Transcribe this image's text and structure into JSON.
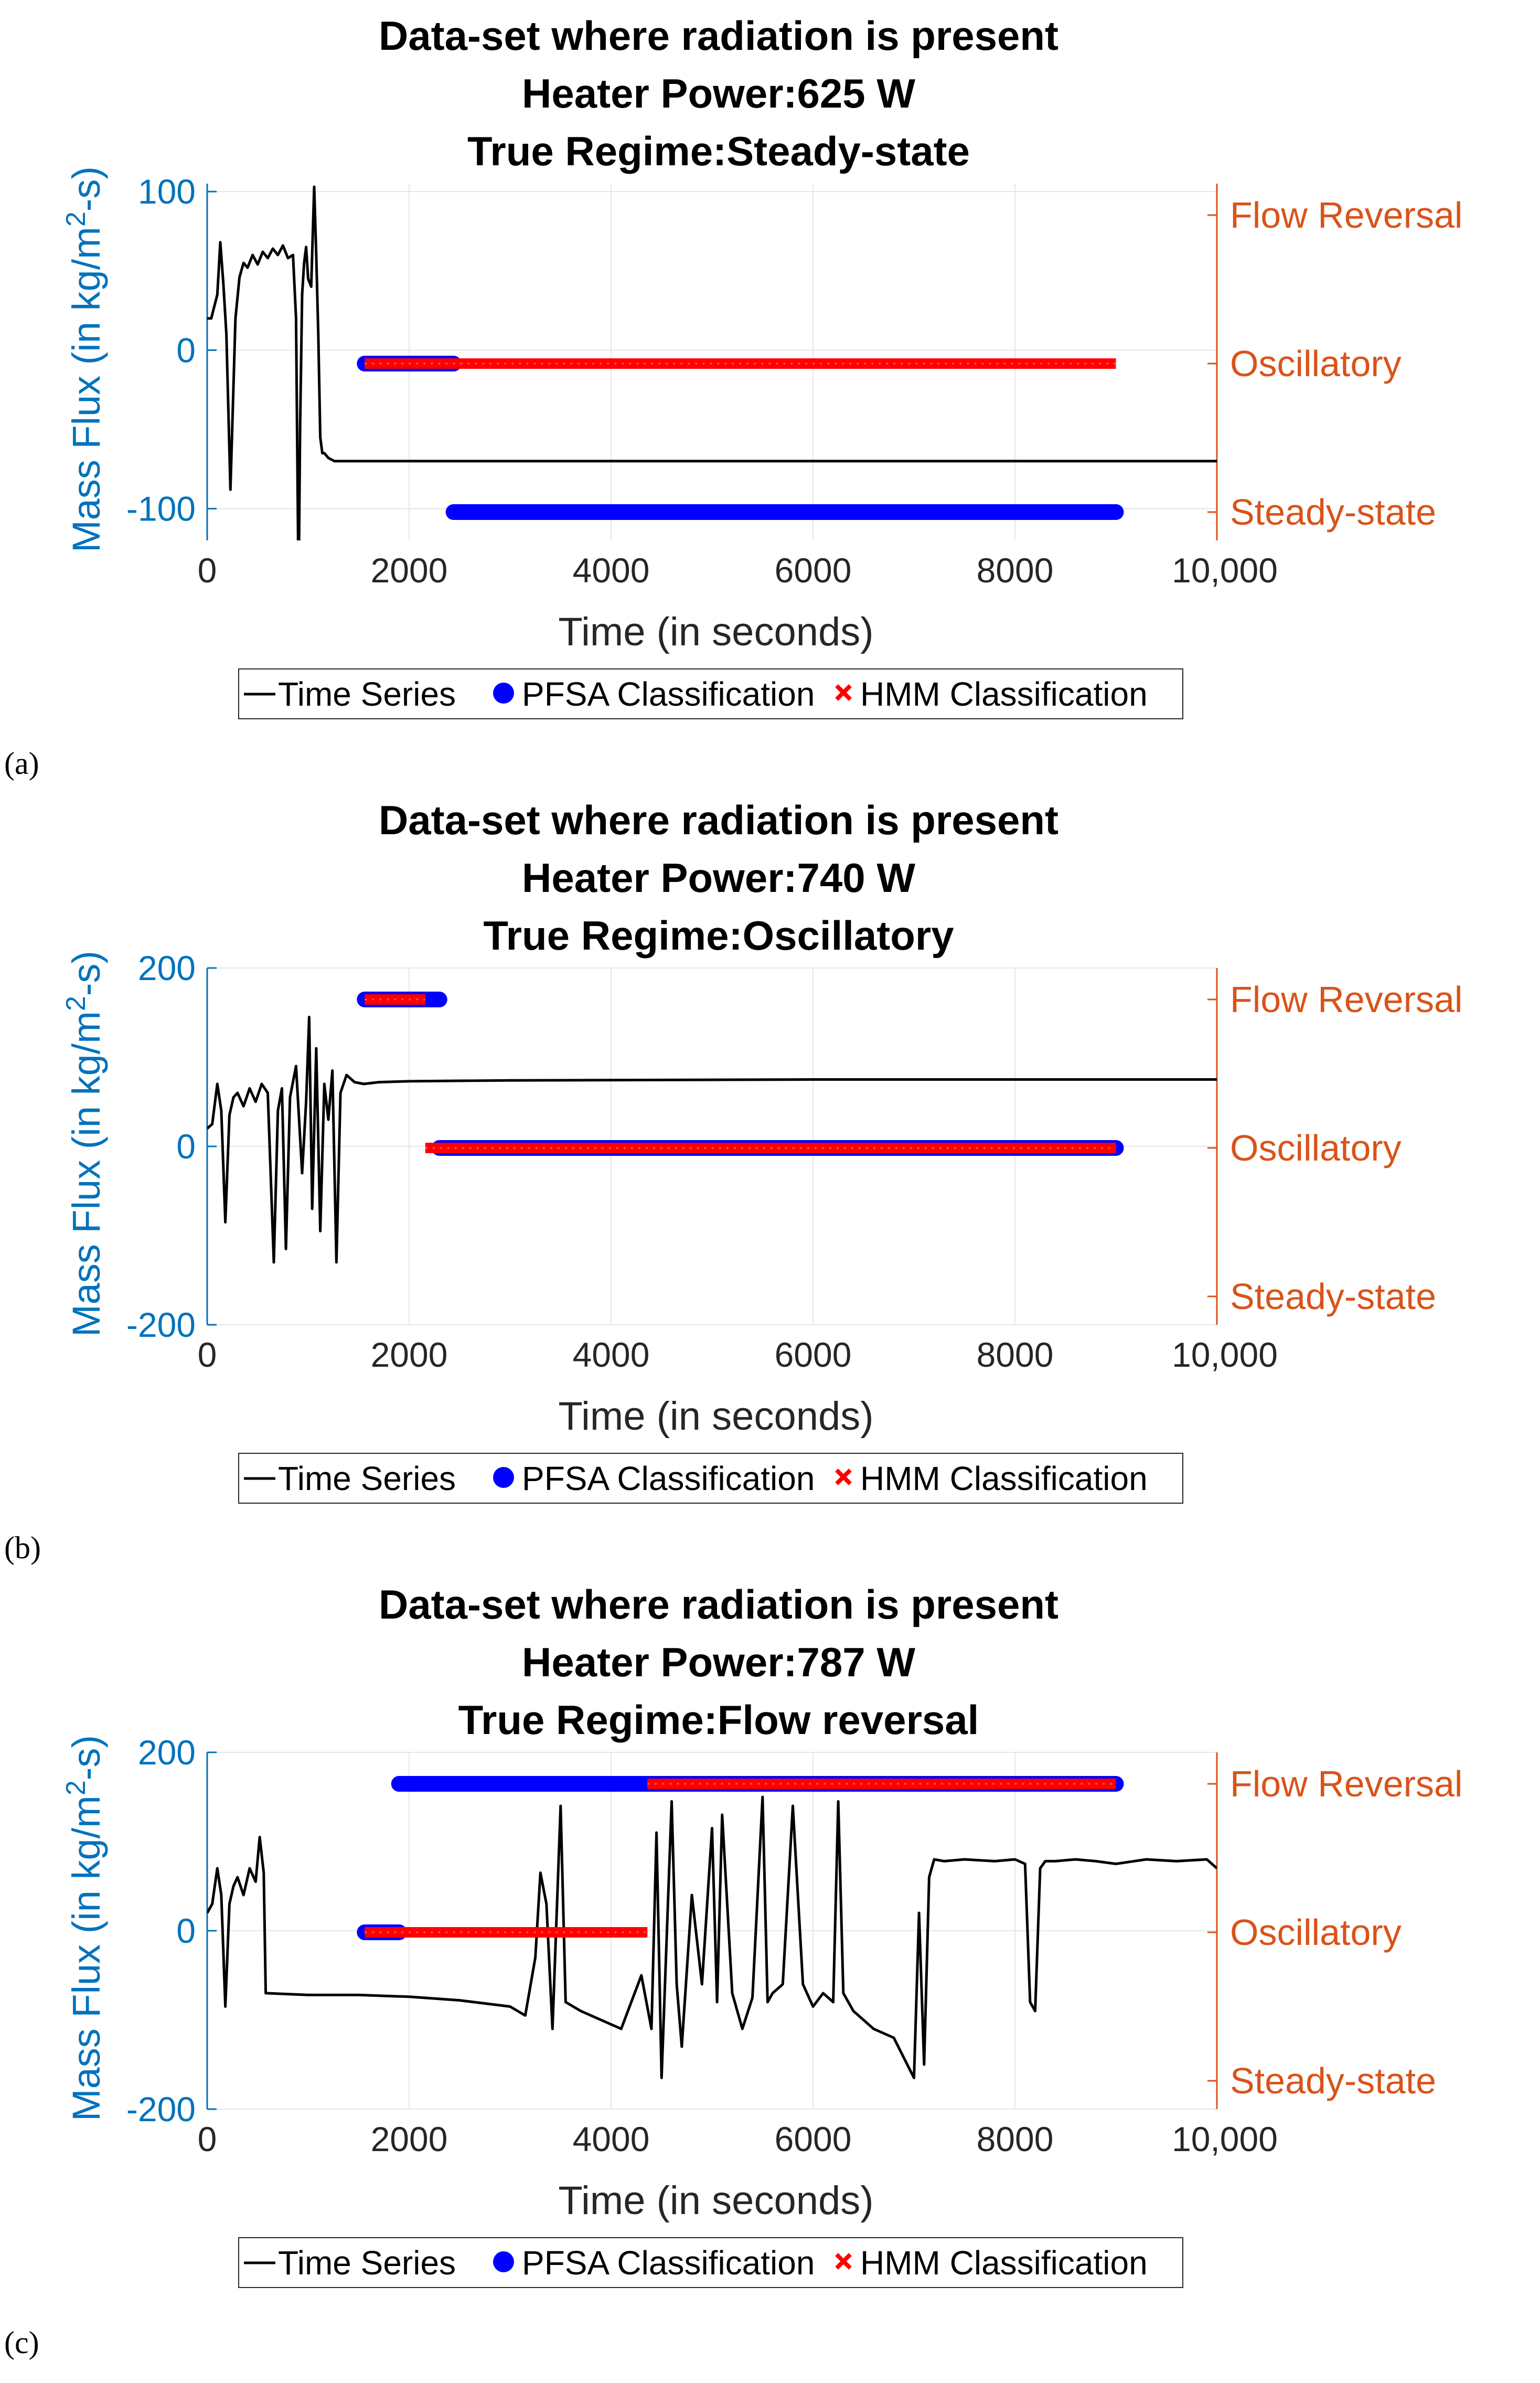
{
  "figure_labels": [
    "(a)",
    "(b)",
    "(c)"
  ],
  "legend": {
    "time_series": "Time Series",
    "pfsa": "PFSA Classification",
    "hmm": "HMM Classification"
  },
  "colors": {
    "time_series": "#000000",
    "pfsa": "#0000FF",
    "hmm": "#FF0000",
    "left_axis": "#0072BD",
    "right_axis": "#D95319"
  },
  "chart_data": [
    {
      "type": "line",
      "title": [
        "Data-set where radiation is present",
        "Heater Power:625 W",
        "True Regime:Steady-state"
      ],
      "xlabel": "Time (in seconds)",
      "ylabel": "Mass Flux (in kg/m2-s)",
      "xlim": [
        0,
        10000
      ],
      "ylim": [
        -120,
        105
      ],
      "xticks": [
        0,
        2000,
        4000,
        6000,
        8000,
        10000
      ],
      "xtick_labels": [
        "0",
        "2000",
        "4000",
        "6000",
        "8000",
        "10,000"
      ],
      "yticks": [
        100,
        0,
        -100
      ],
      "ytick_labels": [
        "100",
        "0",
        "-100"
      ],
      "right_axis": {
        "ticks": [
          "Flow Reversal",
          "Oscillatory",
          "Steady-state"
        ]
      },
      "series": [
        {
          "name": "Time Series",
          "kind": "line",
          "x": [
            0,
            40,
            100,
            130,
            160,
            190,
            230,
            280,
            320,
            360,
            400,
            450,
            500,
            550,
            600,
            650,
            700,
            750,
            800,
            850,
            880,
            900,
            910,
            920,
            940,
            960,
            980,
            1000,
            1030,
            1060,
            1080,
            1100,
            1120,
            1140,
            1160,
            1200,
            1260,
            1350,
            1500,
            10000
          ],
          "y": [
            20,
            20,
            35,
            68,
            42,
            10,
            -88,
            20,
            46,
            55,
            52,
            60,
            54,
            62,
            58,
            64,
            60,
            66,
            58,
            60,
            20,
            -120,
            -120,
            -50,
            35,
            55,
            65,
            45,
            40,
            103,
            60,
            10,
            -55,
            -65,
            -65,
            -68,
            -70,
            -70,
            -70,
            -70
          ]
        },
        {
          "name": "PFSA Classification",
          "kind": "regime",
          "segments": [
            {
              "start": 1560,
              "end": 2440,
              "regime": "Oscillatory"
            },
            {
              "start": 2440,
              "end": 9000,
              "regime": "Steady-state"
            }
          ]
        },
        {
          "name": "HMM Classification",
          "kind": "regime",
          "segments": [
            {
              "start": 1560,
              "end": 9000,
              "regime": "Oscillatory"
            }
          ]
        }
      ]
    },
    {
      "type": "line",
      "title": [
        "Data-set where radiation is present",
        "Heater Power:740 W",
        "True Regime:Oscillatory"
      ],
      "xlabel": "Time (in seconds)",
      "ylabel": "Mass Flux (in kg/m2-s)",
      "xlim": [
        0,
        10000
      ],
      "ylim": [
        -200,
        200
      ],
      "xticks": [
        0,
        2000,
        4000,
        6000,
        8000,
        10000
      ],
      "xtick_labels": [
        "0",
        "2000",
        "4000",
        "6000",
        "8000",
        "10,000"
      ],
      "yticks": [
        200,
        0,
        -200
      ],
      "ytick_labels": [
        "200",
        "0",
        "-200"
      ],
      "right_axis": {
        "ticks": [
          "Flow Reversal",
          "Oscillatory",
          "Steady-state"
        ]
      },
      "series": [
        {
          "name": "Time Series",
          "kind": "line",
          "x": [
            0,
            50,
            100,
            140,
            180,
            220,
            260,
            300,
            360,
            420,
            480,
            540,
            600,
            660,
            700,
            740,
            780,
            820,
            880,
            940,
            980,
            1010,
            1040,
            1080,
            1120,
            1160,
            1200,
            1240,
            1280,
            1320,
            1380,
            1460,
            1550,
            1700,
            2000,
            3000,
            6000,
            10000
          ],
          "y": [
            20,
            25,
            70,
            40,
            -85,
            35,
            55,
            60,
            45,
            65,
            50,
            70,
            60,
            -130,
            40,
            65,
            -115,
            55,
            90,
            -30,
            50,
            145,
            -70,
            110,
            -95,
            70,
            30,
            85,
            -130,
            60,
            80,
            72,
            70,
            72,
            73,
            74,
            75,
            75
          ]
        },
        {
          "name": "PFSA Classification",
          "kind": "regime",
          "segments": [
            {
              "start": 1560,
              "end": 2300,
              "regime": "Flow Reversal"
            },
            {
              "start": 2300,
              "end": 9000,
              "regime": "Oscillatory"
            }
          ]
        },
        {
          "name": "HMM Classification",
          "kind": "regime",
          "segments": [
            {
              "start": 1560,
              "end": 2160,
              "regime": "Flow Reversal"
            },
            {
              "start": 2160,
              "end": 9000,
              "regime": "Oscillatory"
            }
          ]
        }
      ]
    },
    {
      "type": "line",
      "title": [
        "Data-set where radiation is present",
        "Heater Power:787 W",
        "True Regime:Flow reversal"
      ],
      "xlabel": "Time (in seconds)",
      "ylabel": "Mass Flux (in kg/m2-s)",
      "xlim": [
        0,
        10000
      ],
      "ylim": [
        -200,
        200
      ],
      "xticks": [
        0,
        2000,
        4000,
        6000,
        8000,
        10000
      ],
      "xtick_labels": [
        "0",
        "2000",
        "4000",
        "6000",
        "8000",
        "10,000"
      ],
      "yticks": [
        200,
        0,
        -200
      ],
      "ytick_labels": [
        "200",
        "0",
        "-200"
      ],
      "right_axis": {
        "ticks": [
          "Flow Reversal",
          "Oscillatory",
          "Steady-state"
        ]
      },
      "series": [
        {
          "name": "Time Series",
          "kind": "line",
          "x": [
            0,
            50,
            100,
            140,
            180,
            220,
            260,
            300,
            360,
            420,
            480,
            520,
            560,
            580,
            1000,
            1500,
            2000,
            2500,
            3000,
            3150,
            3250,
            3300,
            3360,
            3420,
            3500,
            3550,
            3700,
            3900,
            4100,
            4200,
            4300,
            4400,
            4450,
            4500,
            4600,
            4650,
            4700,
            4800,
            4900,
            5000,
            5050,
            5100,
            5200,
            5300,
            5400,
            5500,
            5550,
            5600,
            5700,
            5800,
            5900,
            6000,
            6100,
            6200,
            6250,
            6300,
            6400,
            6600,
            6800,
            7000,
            7050,
            7100,
            7150,
            7200,
            7300,
            7500,
            7800,
            8000,
            8100,
            8150,
            8200,
            8250,
            8300,
            8400,
            8600,
            8800,
            9000,
            9300,
            9600,
            9900,
            10000
          ],
          "y": [
            20,
            30,
            70,
            40,
            -85,
            30,
            50,
            60,
            40,
            70,
            55,
            105,
            65,
            -70,
            -72,
            -72,
            -74,
            -78,
            -85,
            -95,
            -30,
            65,
            30,
            -110,
            140,
            -80,
            -90,
            -100,
            -110,
            -80,
            -50,
            -110,
            110,
            -165,
            145,
            -60,
            -130,
            40,
            -60,
            115,
            -80,
            130,
            -70,
            -110,
            -75,
            150,
            -80,
            -70,
            -60,
            140,
            -60,
            -85,
            -70,
            -80,
            145,
            -70,
            -90,
            -110,
            -120,
            -165,
            20,
            -150,
            60,
            80,
            78,
            80,
            78,
            80,
            75,
            -80,
            -90,
            70,
            78,
            78,
            80,
            78,
            75,
            80,
            78,
            80,
            70
          ]
        },
        {
          "name": "PFSA Classification",
          "kind": "regime",
          "segments": [
            {
              "start": 1560,
              "end": 1900,
              "regime": "Oscillatory"
            },
            {
              "start": 1900,
              "end": 9000,
              "regime": "Flow Reversal"
            }
          ]
        },
        {
          "name": "HMM Classification",
          "kind": "regime",
          "segments": [
            {
              "start": 1560,
              "end": 4360,
              "regime": "Oscillatory"
            },
            {
              "start": 4360,
              "end": 9000,
              "regime": "Flow Reversal"
            }
          ]
        }
      ]
    }
  ]
}
